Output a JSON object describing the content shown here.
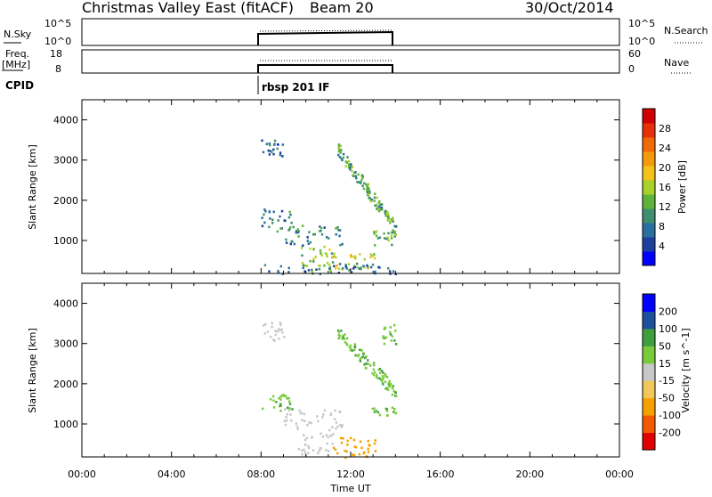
{
  "header": {
    "station": "Christmas Valley East (fitACF)",
    "beam": "Beam 20",
    "date": "30/Oct/2014"
  },
  "top_panels": {
    "nsky": {
      "label_l1": "N.Sky",
      "tick_hi": "10^5",
      "tick_lo": "10^0",
      "right_hi": "10^5",
      "right_lo": "10^0",
      "right_label": "N.Search"
    },
    "freq": {
      "label_l1": "Freq.",
      "label_l2": "[MHz]",
      "tick_hi": "18",
      "tick_lo": "8",
      "right_hi": "60",
      "right_lo": "0",
      "right_label": "Nave"
    },
    "cpid": {
      "label": "CPID",
      "program": "rbsp 201 IF"
    }
  },
  "colors": {
    "power": [
      "#0000ff",
      "#1f3f9f",
      "#2a6fa0",
      "#3f8f6f",
      "#5fb23a",
      "#a9d12a",
      "#f3c21a",
      "#f59a0d",
      "#f06a0a",
      "#e5300a",
      "#d10000"
    ],
    "velocity": [
      "#e10000",
      "#f25a00",
      "#f6a000",
      "#f1c85a",
      "#c8c8c8",
      "#7acb3c",
      "#3f9f3f",
      "#1f4f9f",
      "#0000ff"
    ]
  },
  "chart_data": [
    {
      "type": "heatmap",
      "title": "Power",
      "ylabel": "Slant Range [km]",
      "xlabel": "",
      "ylim": [
        180,
        4500
      ],
      "xlim": [
        0,
        24
      ],
      "yticks": [
        "1000",
        "2000",
        "3000",
        "4000"
      ],
      "colorbar": {
        "label": "Power [dB]",
        "ticks": [
          "4",
          "8",
          "12",
          "16",
          "20",
          "24",
          "28"
        ],
        "range": [
          0,
          32
        ]
      },
      "blobs": [
        {
          "t0": 8.0,
          "t1": 9.0,
          "r0": 3100,
          "r1": 3550,
          "v": 6
        },
        {
          "t0": 8.0,
          "t1": 9.4,
          "r0": 1250,
          "r1": 1800,
          "v": 9
        },
        {
          "t0": 9.0,
          "t1": 11.6,
          "r0": 900,
          "r1": 1400,
          "v": 9
        },
        {
          "t0": 9.6,
          "t1": 11.2,
          "r0": 250,
          "r1": 900,
          "v": 14
        },
        {
          "t0": 11.2,
          "t1": 13.1,
          "r0": 300,
          "r1": 700,
          "v": 18
        },
        {
          "t0": 12.8,
          "t1": 14.0,
          "r0": 900,
          "r1": 1300,
          "v": 12
        },
        {
          "t0": 8.0,
          "t1": 14.0,
          "r0": 180,
          "r1": 450,
          "v": 8
        },
        {
          "t0": 11.4,
          "t1": 14.0,
          "r0": 1300,
          "r1": 3300,
          "v": 12,
          "slant": true
        }
      ]
    },
    {
      "type": "heatmap",
      "title": "Velocity",
      "ylabel": "Slant Range [km]",
      "xlabel": "Time UT",
      "ylim": [
        180,
        4500
      ],
      "xlim": [
        0,
        24
      ],
      "xticks": [
        "00:00",
        "04:00",
        "08:00",
        "12:00",
        "16:00",
        "20:00",
        "00:00"
      ],
      "yticks": [
        "1000",
        "2000",
        "3000",
        "4000"
      ],
      "colorbar": {
        "label": "Velocity [m s^-1]",
        "ticks": [
          "-200",
          "-100",
          "-50",
          "-15",
          "15",
          "50",
          "100",
          "200"
        ]
      },
      "blobs": [
        {
          "t0": 8.0,
          "t1": 9.0,
          "r0": 3100,
          "r1": 3550,
          "v": 0
        },
        {
          "t0": 8.0,
          "t1": 9.4,
          "r0": 1350,
          "r1": 1800,
          "v": 30
        },
        {
          "t0": 9.0,
          "t1": 11.6,
          "r0": 900,
          "r1": 1400,
          "v": 0
        },
        {
          "t0": 9.6,
          "t1": 11.2,
          "r0": 250,
          "r1": 900,
          "v": -5
        },
        {
          "t0": 11.2,
          "t1": 13.1,
          "r0": 180,
          "r1": 700,
          "v": -40
        },
        {
          "t0": 12.8,
          "t1": 14.0,
          "r0": 1200,
          "r1": 1450,
          "v": 30
        },
        {
          "t0": 11.4,
          "t1": 14.0,
          "r0": 1800,
          "r1": 3300,
          "v": 30,
          "slant": true
        },
        {
          "t0": 13.4,
          "t1": 14.0,
          "r0": 3000,
          "r1": 3500,
          "v": 30
        }
      ]
    }
  ]
}
